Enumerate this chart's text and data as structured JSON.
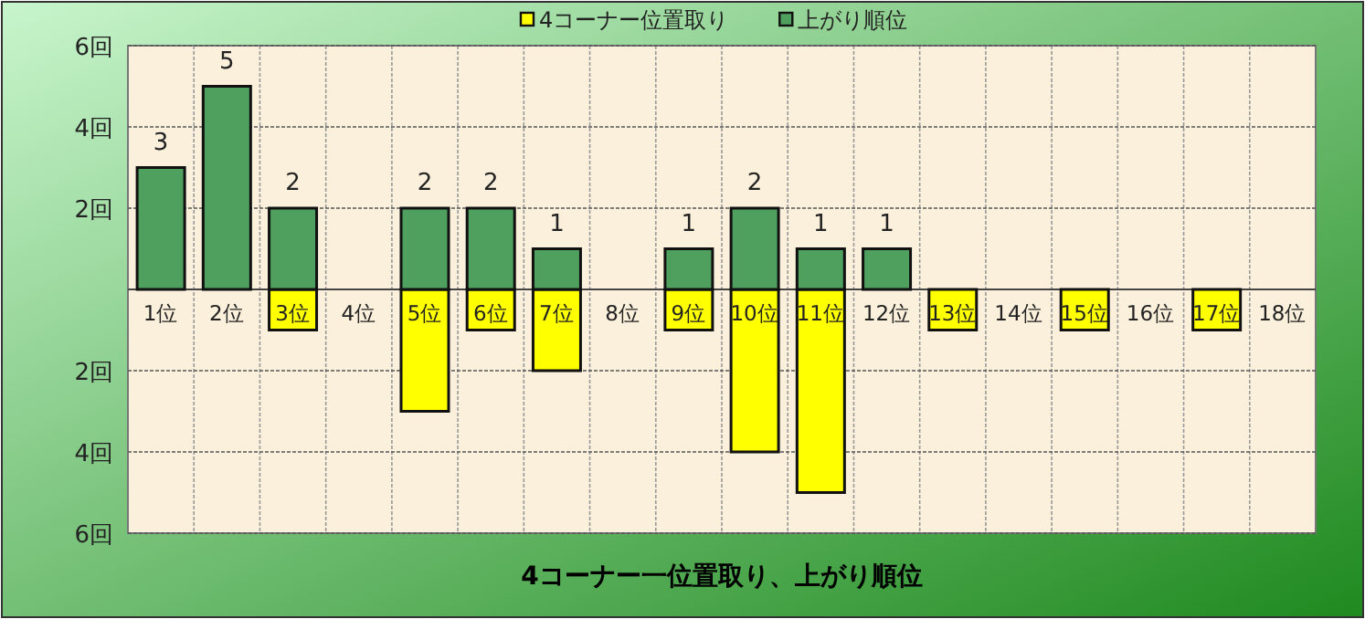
{
  "chart_data": {
    "type": "bar",
    "title": "4コーナー一位置取り、上がり順位",
    "categories": [
      "1位",
      "2位",
      "3位",
      "4位",
      "5位",
      "6位",
      "7位",
      "8位",
      "9位",
      "10位",
      "11位",
      "12位",
      "13位",
      "14位",
      "15位",
      "16位",
      "17位",
      "18位"
    ],
    "series": [
      {
        "name": "4コーナー位置取り",
        "color": "#ffff00",
        "values": [
          null,
          null,
          -1,
          null,
          -3,
          -1,
          -2,
          null,
          -1,
          -4,
          -5,
          null,
          -1,
          null,
          -1,
          null,
          -1,
          null
        ]
      },
      {
        "name": "上がり順位",
        "color": "#4f9f5f",
        "values": [
          3,
          5,
          2,
          null,
          2,
          2,
          1,
          null,
          1,
          2,
          1,
          1,
          null,
          null,
          null,
          null,
          null,
          null
        ],
        "value_labels": [
          "3",
          "5",
          "2",
          null,
          "2",
          "2",
          "1",
          null,
          "1",
          "2",
          "1",
          "1",
          null,
          null,
          null,
          null,
          null,
          null
        ]
      }
    ],
    "ylim": [
      -6,
      6
    ],
    "yticks": [
      {
        "value": -6,
        "label": "6回"
      },
      {
        "value": -4,
        "label": "4回"
      },
      {
        "value": -2,
        "label": "2回"
      },
      {
        "value": 0,
        "label": null
      },
      {
        "value": 2,
        "label": "2回"
      },
      {
        "value": 4,
        "label": "4回"
      },
      {
        "value": 6,
        "label": "6回"
      }
    ],
    "grid": true,
    "legend": "top"
  }
}
